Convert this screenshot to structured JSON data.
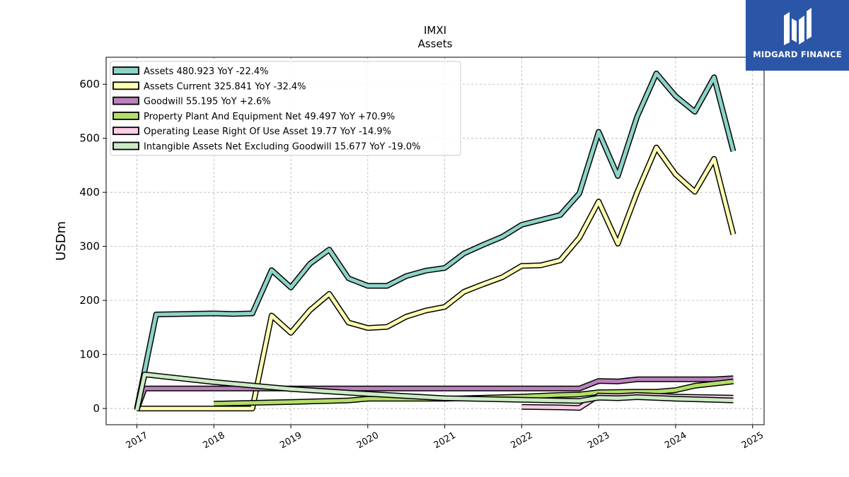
{
  "chart_data": {
    "type": "line",
    "title": "IMXI",
    "subtitle": "Assets",
    "ylabel": "USDm",
    "xlabel": "",
    "xlim": [
      2016.6,
      2025.15
    ],
    "ylim": [
      -30,
      650
    ],
    "x_ticks": [
      2017,
      2018,
      2019,
      2020,
      2021,
      2022,
      2023,
      2024,
      2025
    ],
    "y_ticks": [
      0,
      100,
      200,
      300,
      400,
      500,
      600
    ],
    "grid": true,
    "legend_position": "top-left",
    "series": [
      {
        "name": "Assets  480.923 YoY -22.4%",
        "color": "#8dd3c7",
        "points": [
          [
            2017.0,
            0
          ],
          [
            2017.25,
            174
          ],
          [
            2018.0,
            176
          ],
          [
            2018.25,
            175
          ],
          [
            2018.5,
            176
          ],
          [
            2018.75,
            256
          ],
          [
            2019.0,
            224
          ],
          [
            2019.25,
            268
          ],
          [
            2019.5,
            294
          ],
          [
            2019.75,
            241
          ],
          [
            2020.0,
            227
          ],
          [
            2020.25,
            227
          ],
          [
            2020.5,
            245
          ],
          [
            2020.75,
            255
          ],
          [
            2021.0,
            260
          ],
          [
            2021.25,
            287
          ],
          [
            2021.5,
            303
          ],
          [
            2021.75,
            318
          ],
          [
            2022.0,
            340
          ],
          [
            2022.25,
            349
          ],
          [
            2022.5,
            358
          ],
          [
            2022.75,
            398
          ],
          [
            2023.0,
            512
          ],
          [
            2023.25,
            430
          ],
          [
            2023.5,
            540
          ],
          [
            2023.75,
            620
          ],
          [
            2024.0,
            578
          ],
          [
            2024.25,
            549
          ],
          [
            2024.5,
            613
          ],
          [
            2024.75,
            476
          ]
        ]
      },
      {
        "name": "Assets Current  325.841 YoY -32.4%",
        "color": "#ffffb3",
        "points": [
          [
            2017.0,
            0
          ],
          [
            2017.25,
            0
          ],
          [
            2018.0,
            0
          ],
          [
            2018.25,
            0
          ],
          [
            2018.5,
            0
          ],
          [
            2018.75,
            172
          ],
          [
            2019.0,
            140
          ],
          [
            2019.25,
            182
          ],
          [
            2019.5,
            212
          ],
          [
            2019.75,
            159
          ],
          [
            2020.0,
            149
          ],
          [
            2020.25,
            151
          ],
          [
            2020.5,
            170
          ],
          [
            2020.75,
            181
          ],
          [
            2021.0,
            188
          ],
          [
            2021.25,
            216
          ],
          [
            2021.5,
            230
          ],
          [
            2021.75,
            243
          ],
          [
            2022.0,
            264
          ],
          [
            2022.25,
            265
          ],
          [
            2022.5,
            274
          ],
          [
            2022.75,
            316
          ],
          [
            2023.0,
            383
          ],
          [
            2023.25,
            305
          ],
          [
            2023.5,
            400
          ],
          [
            2023.75,
            483
          ],
          [
            2024.0,
            433
          ],
          [
            2024.25,
            401
          ],
          [
            2024.5,
            462
          ],
          [
            2024.75,
            322
          ]
        ]
      },
      {
        "name": "Goodwill  55.195 YoY +2.6%",
        "color": "#bc80bd",
        "points": [
          [
            2017.0,
            -2
          ],
          [
            2017.1,
            37
          ],
          [
            2018.0,
            37
          ],
          [
            2019.0,
            37
          ],
          [
            2020.0,
            37
          ],
          [
            2021.0,
            37
          ],
          [
            2022.0,
            37
          ],
          [
            2022.75,
            37
          ],
          [
            2023.0,
            51
          ],
          [
            2023.25,
            50
          ],
          [
            2023.5,
            54
          ],
          [
            2024.0,
            54
          ],
          [
            2024.5,
            54
          ],
          [
            2024.75,
            56
          ]
        ]
      },
      {
        "name": "Property Plant And Equipment Net  49.497 YoY +70.9%",
        "color": "#b3de69",
        "points": [
          [
            2018.0,
            9
          ],
          [
            2019.0,
            12
          ],
          [
            2019.75,
            15
          ],
          [
            2020.0,
            18
          ],
          [
            2021.0,
            18
          ],
          [
            2022.0,
            22
          ],
          [
            2022.5,
            25
          ],
          [
            2022.75,
            26
          ],
          [
            2023.0,
            30
          ],
          [
            2023.5,
            31
          ],
          [
            2023.75,
            31
          ],
          [
            2024.0,
            34
          ],
          [
            2024.25,
            42
          ],
          [
            2024.75,
            50
          ]
        ]
      },
      {
        "name": "Operating Lease Right Of Use Asset  19.77 YoY -14.9%",
        "color": "#fccde5",
        "points": [
          [
            2022.0,
            3
          ],
          [
            2022.5,
            2
          ],
          [
            2022.75,
            1
          ],
          [
            2023.0,
            24
          ],
          [
            2023.25,
            23
          ],
          [
            2023.5,
            25
          ],
          [
            2024.0,
            22
          ],
          [
            2024.75,
            20
          ]
        ]
      },
      {
        "name": "Intangible Assets Net Excluding Goodwill  15.677 YoY -19.0%",
        "color": "#ccebc5",
        "points": [
          [
            2017.0,
            -3
          ],
          [
            2017.1,
            63
          ],
          [
            2018.0,
            49
          ],
          [
            2019.0,
            36
          ],
          [
            2020.0,
            27
          ],
          [
            2021.0,
            19
          ],
          [
            2022.0,
            16
          ],
          [
            2022.75,
            14
          ],
          [
            2023.0,
            20
          ],
          [
            2023.25,
            19
          ],
          [
            2023.5,
            21
          ],
          [
            2024.0,
            18
          ],
          [
            2024.75,
            15
          ]
        ]
      }
    ]
  },
  "logo": {
    "text": "MIDGARD FINANCE"
  }
}
